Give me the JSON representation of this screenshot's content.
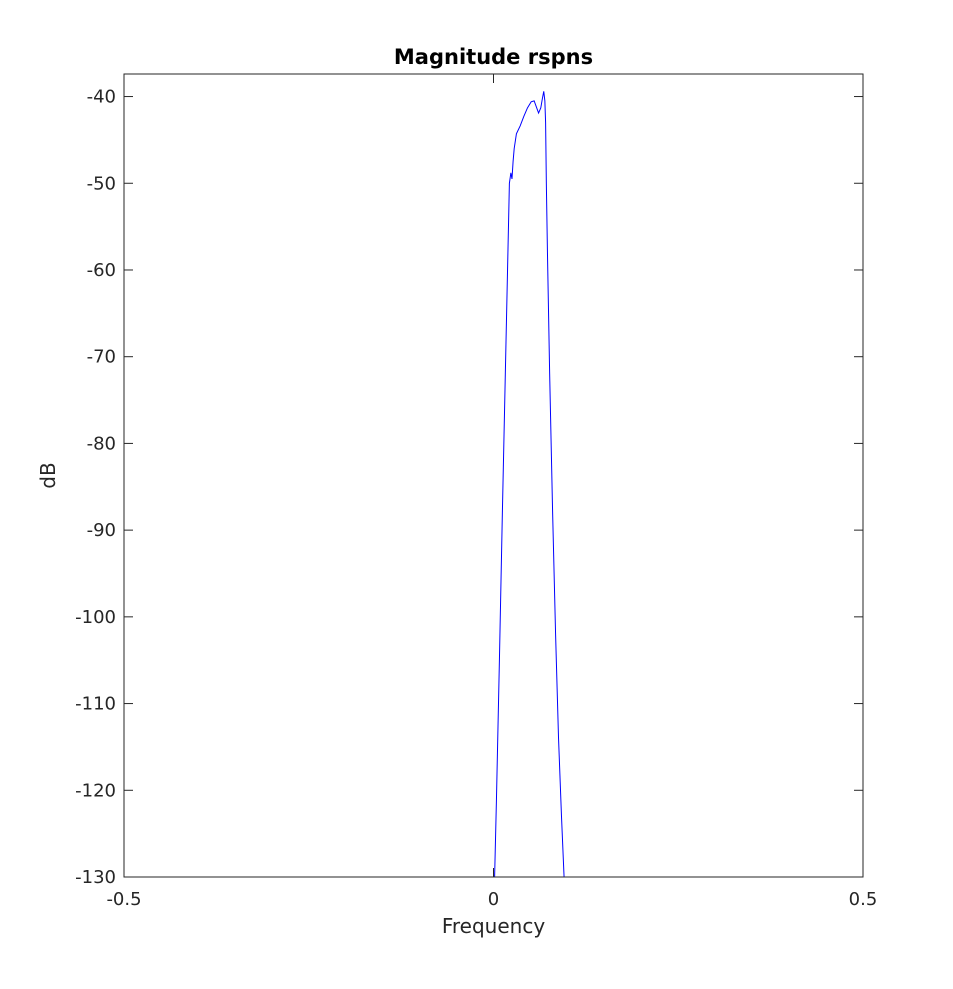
{
  "chart_data": {
    "type": "line",
    "title": "Magnitude rspns",
    "xlabel": "Frequency",
    "ylabel": "dB",
    "xlim": [
      -0.5,
      0.5
    ],
    "ylim": [
      -130,
      -37.4
    ],
    "x_ticks": [
      -0.5,
      0,
      0.5
    ],
    "x_tick_labels": [
      "-0.5",
      "0",
      "0.5"
    ],
    "y_ticks": [
      -130,
      -120,
      -110,
      -100,
      -90,
      -80,
      -70,
      -60,
      -50,
      -40
    ],
    "y_tick_labels": [
      "-130",
      "-120",
      "-110",
      "-100",
      "-90",
      "-80",
      "-70",
      "-60",
      "-50",
      "-40"
    ],
    "grid": false,
    "box": true,
    "series": [
      {
        "color": "#0000ff",
        "x": [
          0.0015,
          0.004,
          0.008,
          0.012,
          0.016,
          0.019,
          0.0215,
          0.0235,
          0.025,
          0.0265,
          0.028,
          0.031,
          0.036,
          0.041,
          0.046,
          0.051,
          0.055,
          0.058,
          0.061,
          0.064,
          0.066,
          0.068,
          0.0695,
          0.0705,
          0.0715,
          0.073,
          0.076,
          0.08,
          0.084,
          0.088,
          0.092,
          0.0955
        ],
        "y": [
          -130,
          -121,
          -105,
          -88,
          -72,
          -60,
          -50,
          -48.8,
          -49.5,
          -47.5,
          -46,
          -44.3,
          -43.4,
          -42.3,
          -41.3,
          -40.6,
          -40.5,
          -41.2,
          -41.9,
          -41.3,
          -40.3,
          -39.4,
          -40.5,
          -43,
          -50,
          -58,
          -72,
          -88,
          -102,
          -114,
          -123,
          -130
        ]
      }
    ]
  }
}
